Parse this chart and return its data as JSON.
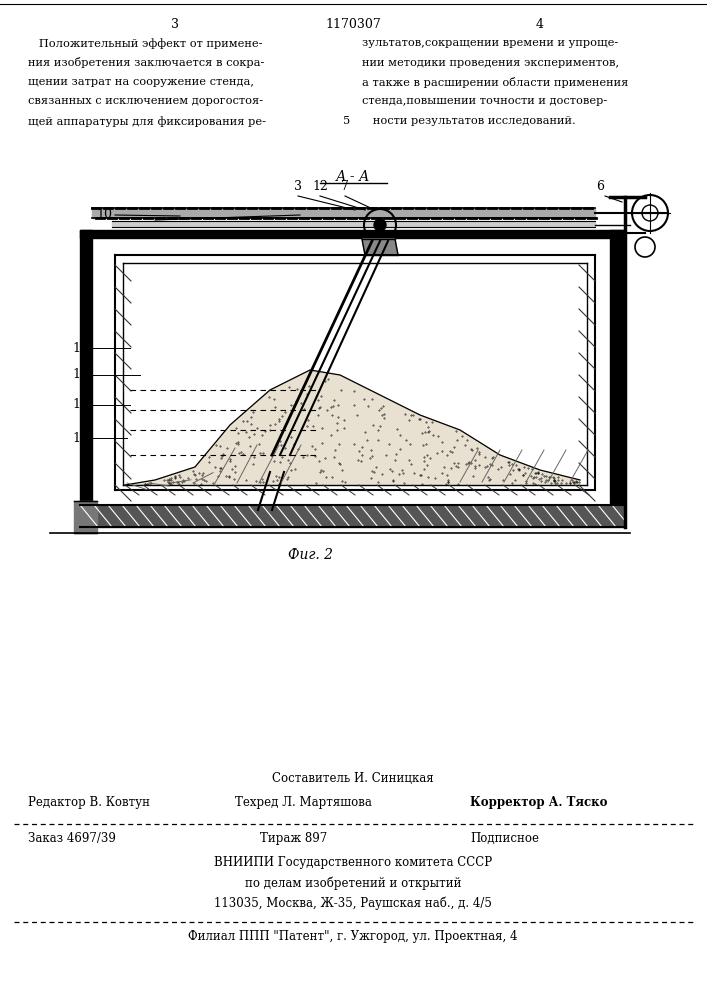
{
  "bg_color": "#ffffff",
  "text_color": "#000000",
  "page_number_left": "3",
  "page_number_center": "1170307",
  "page_number_right": "4",
  "col_left_text": "   Положительный эффект от примене-\nния изобретения заключается в сокра-\nщении затрат на сооружение стенда,\nсвязанных с исключением дорогостоя-\nщей аппаратуры для фиксирования ре-",
  "col_right_text": "зультатов,сокращении времени и упроще-\nнии методики проведения экспериментов,\nа также в расширении области применения\nстенда,повышении точности и достовер-\n   ности результатов исследований.",
  "section_label": "А - А",
  "fig_label": "Фиг. 2",
  "footer_line1": "Составитель И. Синицкая",
  "footer_line2_left": "Редактор В. Ковтун",
  "footer_line2_mid": "Техред Л. Мартяшова",
  "footer_line2_right": "Корректор А. Тяско",
  "footer_line3_left": "Заказ 4697/39",
  "footer_line3_mid": "Тираж 897",
  "footer_line3_right": "Подписное",
  "footer_line4": "ВНИИПИ Государственного комитета СССР",
  "footer_line5": "по делам изобретений и открытий",
  "footer_line6": "113035, Москва, Ж-35, Раушская наб., д. 4/5",
  "footer_line7": "Филиал ППП \"Патент\", г. Ужгород, ул. Проектная, 4",
  "line_number_right": "5"
}
